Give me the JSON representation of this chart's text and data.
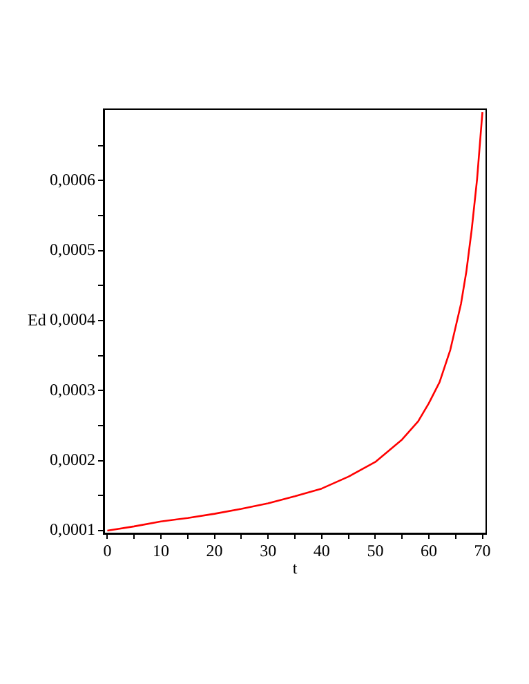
{
  "chart_data": {
    "type": "line",
    "xlabel": "t",
    "ylabel": "Ed",
    "x": [
      0,
      5,
      10,
      15,
      20,
      25,
      30,
      35,
      40,
      45,
      50,
      55,
      58,
      60,
      62,
      64,
      66,
      67,
      68,
      69,
      70
    ],
    "series": [
      {
        "color": "#ff0000",
        "values": [
          0.0001,
          0.000106,
          0.000113,
          0.000118,
          0.000124,
          0.000131,
          0.000139,
          0.000149,
          0.00016,
          0.000177,
          0.000198,
          0.00023,
          0.000256,
          0.000282,
          0.000312,
          0.000358,
          0.000424,
          0.00047,
          0.00053,
          0.000602,
          0.000698
        ]
      }
    ],
    "xlim": [
      -0.7,
      70.7
    ],
    "xticks": [
      0,
      {
        "value": 5,
        "label": null
      },
      10,
      {
        "value": 15,
        "label": null
      },
      20,
      {
        "value": 25,
        "label": null
      },
      30,
      {
        "value": 35,
        "label": null
      },
      40,
      {
        "value": 45,
        "label": null
      },
      50,
      {
        "value": 55,
        "label": null
      },
      60,
      {
        "value": 65,
        "label": null
      },
      70
    ],
    "ylim": [
      9.6e-05,
      0.000702
    ],
    "yticks": [
      {
        "value": 0.0001,
        "label": "0,0001"
      },
      {
        "value": 0.00015,
        "label": null
      },
      {
        "value": 0.0002,
        "label": "0,0002"
      },
      {
        "value": 0.00025,
        "label": null
      },
      {
        "value": 0.0003,
        "label": "0,0003"
      },
      {
        "value": 0.00035,
        "label": null
      },
      {
        "value": 0.0004,
        "label": "0,0004"
      },
      {
        "value": 0.00045,
        "label": null
      },
      {
        "value": 0.0005,
        "label": "0,0005"
      },
      {
        "value": 0.00055,
        "label": null
      },
      {
        "value": 0.0006,
        "label": "0,0006"
      },
      {
        "value": 0.00065,
        "label": null
      }
    ],
    "grid": false,
    "legend": false,
    "marker": "none",
    "line_style": "solid"
  }
}
